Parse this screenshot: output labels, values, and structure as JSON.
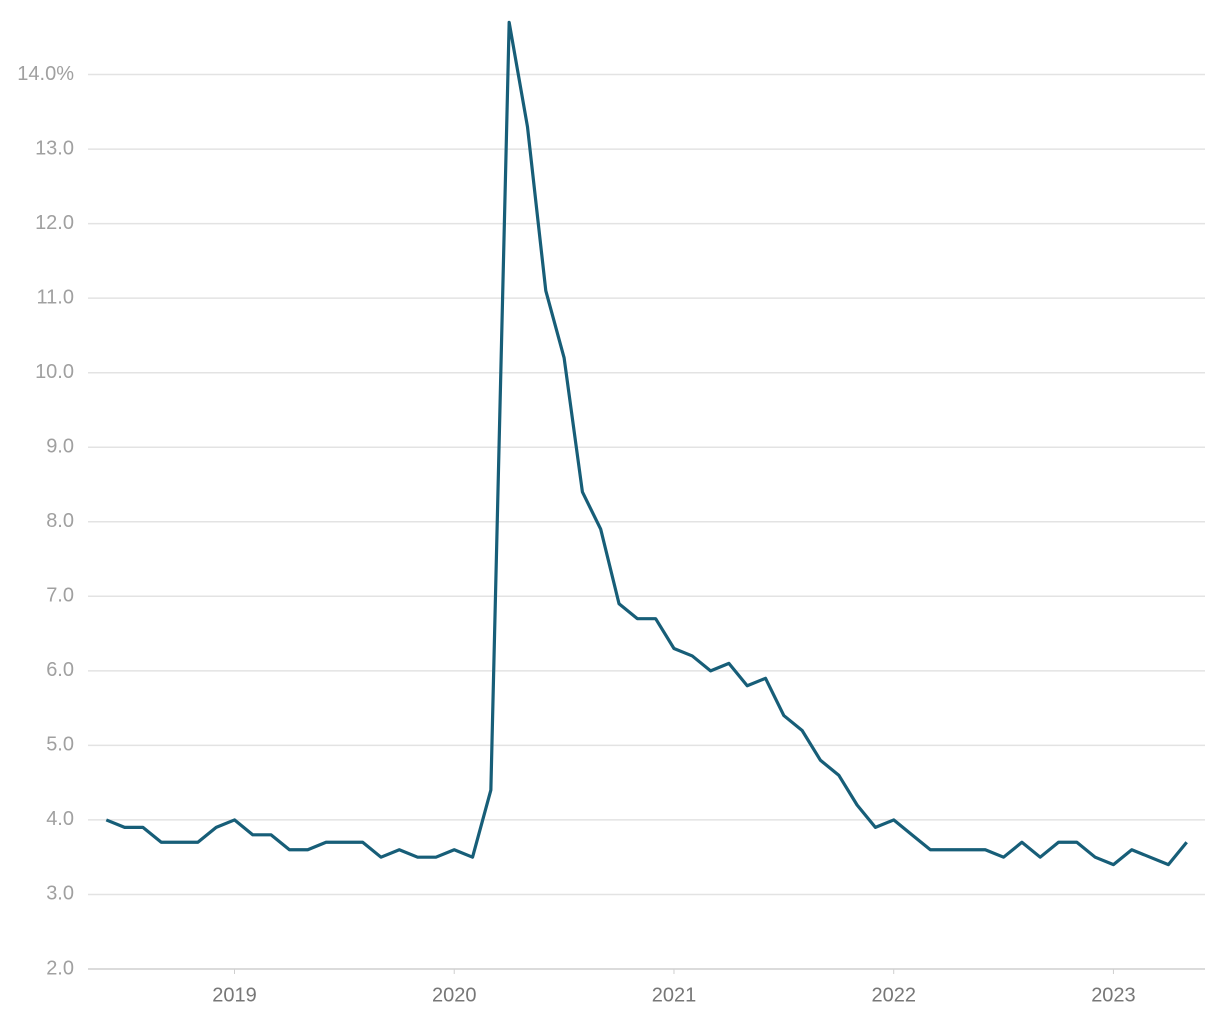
{
  "chart_data": {
    "type": "line",
    "x": [
      0,
      1,
      2,
      3,
      4,
      5,
      6,
      7,
      8,
      9,
      10,
      11,
      12,
      13,
      14,
      15,
      16,
      17,
      18,
      19,
      20,
      21,
      22,
      23,
      24,
      25,
      26,
      27,
      28,
      29,
      30,
      31,
      32,
      33,
      34,
      35,
      36,
      37,
      38,
      39,
      40,
      41,
      42,
      43,
      44,
      45,
      46,
      47,
      48,
      49,
      50,
      51,
      52,
      53,
      54,
      55,
      56,
      57,
      58,
      59
    ],
    "series": [
      {
        "color": "#175e78",
        "values": [
          4.0,
          3.9,
          3.9,
          3.7,
          3.7,
          3.7,
          3.9,
          4.0,
          3.8,
          3.8,
          3.6,
          3.6,
          3.7,
          3.7,
          3.7,
          3.5,
          3.6,
          3.5,
          3.5,
          3.6,
          3.5,
          4.4,
          14.7,
          13.3,
          11.1,
          10.2,
          8.4,
          7.9,
          6.9,
          6.7,
          6.7,
          6.3,
          6.2,
          6.0,
          6.1,
          5.8,
          5.9,
          5.4,
          5.2,
          4.8,
          4.6,
          4.2,
          3.9,
          4.0,
          3.8,
          3.6,
          3.6,
          3.6,
          3.6,
          3.5,
          3.7,
          3.5,
          3.7,
          3.7,
          3.5,
          3.4,
          3.6,
          3.5,
          3.4,
          3.7
        ]
      }
    ],
    "xlim": [
      -1,
      60
    ],
    "xticks": [
      {
        "value": 7,
        "label": "2019"
      },
      {
        "value": 19,
        "label": "2020"
      },
      {
        "value": 31,
        "label": "2021"
      },
      {
        "value": 43,
        "label": "2022"
      },
      {
        "value": 55,
        "label": "2023"
      }
    ],
    "ylim": [
      2,
      15
    ],
    "yticks": [
      {
        "value": 2,
        "label": "2.0"
      },
      {
        "value": 3,
        "label": "3.0"
      },
      {
        "value": 4,
        "label": "4.0"
      },
      {
        "value": 5,
        "label": "5.0"
      },
      {
        "value": 6,
        "label": "6.0"
      },
      {
        "value": 7,
        "label": "7.0"
      },
      {
        "value": 8,
        "label": "8.0"
      },
      {
        "value": 9,
        "label": "9.0"
      },
      {
        "value": 10,
        "label": "10.0"
      },
      {
        "value": 11,
        "label": "11.0"
      },
      {
        "value": 12,
        "label": "12.0"
      },
      {
        "value": 13,
        "label": "13.0"
      },
      {
        "value": 14,
        "label": "14.0%"
      }
    ],
    "grid": true
  }
}
